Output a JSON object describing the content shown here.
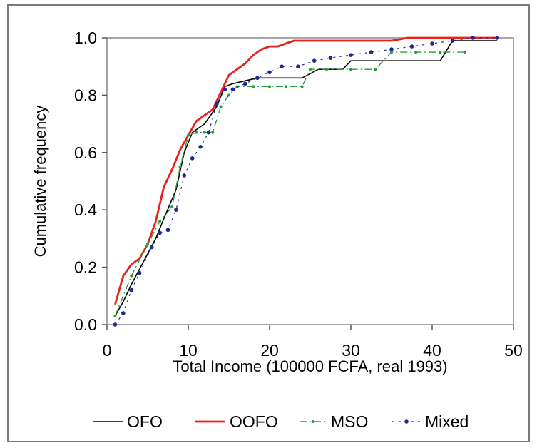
{
  "chart_data": {
    "type": "line",
    "title": "",
    "xlabel": "Total Income (100000 FCFA, real 1993)",
    "ylabel": "Cumulative frequency",
    "xlim": [
      0,
      50
    ],
    "ylim": [
      0,
      1.0
    ],
    "x_ticks": [
      "0",
      "10",
      "20",
      "30",
      "40",
      "50"
    ],
    "y_ticks": [
      "0.0",
      "0.2",
      "0.4",
      "0.6",
      "0.8",
      "1.0"
    ],
    "grid": false,
    "legend_position": "bottom",
    "series": [
      {
        "name": "OFO",
        "color": "#000000",
        "style": "solid",
        "x": [
          1.0,
          2.0,
          3.0,
          4.5,
          6.0,
          7.0,
          8.5,
          9.5,
          10.5,
          12.0,
          13.5,
          14.5,
          15.5,
          17.0,
          18.5,
          20.0,
          22.0,
          24.0,
          26.0,
          29.0,
          30.0,
          35.0,
          36.0,
          41.0,
          42.5,
          48.0
        ],
        "y": [
          0.03,
          0.08,
          0.14,
          0.22,
          0.3,
          0.37,
          0.47,
          0.6,
          0.67,
          0.7,
          0.76,
          0.83,
          0.84,
          0.85,
          0.86,
          0.86,
          0.86,
          0.86,
          0.89,
          0.89,
          0.92,
          0.92,
          0.92,
          0.92,
          0.99,
          0.99
        ]
      },
      {
        "name": "OOFO",
        "color": "#e8221c",
        "style": "solid",
        "x": [
          1.0,
          2.0,
          3.0,
          4.0,
          5.0,
          6.0,
          7.0,
          8.0,
          9.0,
          10.0,
          11.0,
          12.0,
          13.0,
          14.0,
          15.0,
          16.0,
          17.0,
          18.0,
          19.0,
          20.0,
          21.0,
          22.0,
          23.0,
          24.0,
          26.0,
          30.0,
          35.0,
          37.0,
          40.0,
          48.0
        ],
        "y": [
          0.07,
          0.17,
          0.21,
          0.23,
          0.28,
          0.36,
          0.48,
          0.54,
          0.61,
          0.66,
          0.71,
          0.73,
          0.75,
          0.81,
          0.87,
          0.89,
          0.91,
          0.94,
          0.96,
          0.97,
          0.97,
          0.98,
          0.99,
          0.99,
          0.99,
          0.99,
          0.99,
          1.0,
          1.0,
          1.0
        ]
      },
      {
        "name": "MSO",
        "color": "#2a9a3a",
        "style": "dash-dot",
        "x": [
          1.0,
          3.0,
          5.0,
          6.5,
          8.0,
          9.0,
          10.0,
          11.0,
          12.0,
          13.0,
          14.0,
          15.0,
          16.0,
          18.0,
          20.0,
          22.0,
          24.0,
          25.0,
          27.0,
          30.0,
          33.0,
          35.0,
          38.0,
          41.0,
          44.0
        ],
        "y": [
          0.03,
          0.17,
          0.28,
          0.36,
          0.41,
          0.55,
          0.66,
          0.67,
          0.67,
          0.67,
          0.76,
          0.8,
          0.83,
          0.83,
          0.83,
          0.83,
          0.83,
          0.89,
          0.89,
          0.89,
          0.89,
          0.95,
          0.95,
          0.95,
          0.95
        ]
      },
      {
        "name": "Mixed",
        "color": "#1e2a8c",
        "style": "dotted",
        "x": [
          1.0,
          2.0,
          3.0,
          4.0,
          5.5,
          6.5,
          7.5,
          8.5,
          9.5,
          10.5,
          11.5,
          12.5,
          13.5,
          14.5,
          15.5,
          17.0,
          18.5,
          20.0,
          21.5,
          23.5,
          25.5,
          27.5,
          30.0,
          32.5,
          35.0,
          37.5,
          40.0,
          42.5,
          45.0,
          48.0
        ],
        "y": [
          0.0,
          0.04,
          0.12,
          0.18,
          0.27,
          0.32,
          0.33,
          0.4,
          0.52,
          0.58,
          0.62,
          0.67,
          0.77,
          0.82,
          0.82,
          0.84,
          0.86,
          0.88,
          0.9,
          0.9,
          0.92,
          0.93,
          0.94,
          0.95,
          0.96,
          0.97,
          0.98,
          0.99,
          1.0,
          1.0
        ]
      }
    ]
  }
}
